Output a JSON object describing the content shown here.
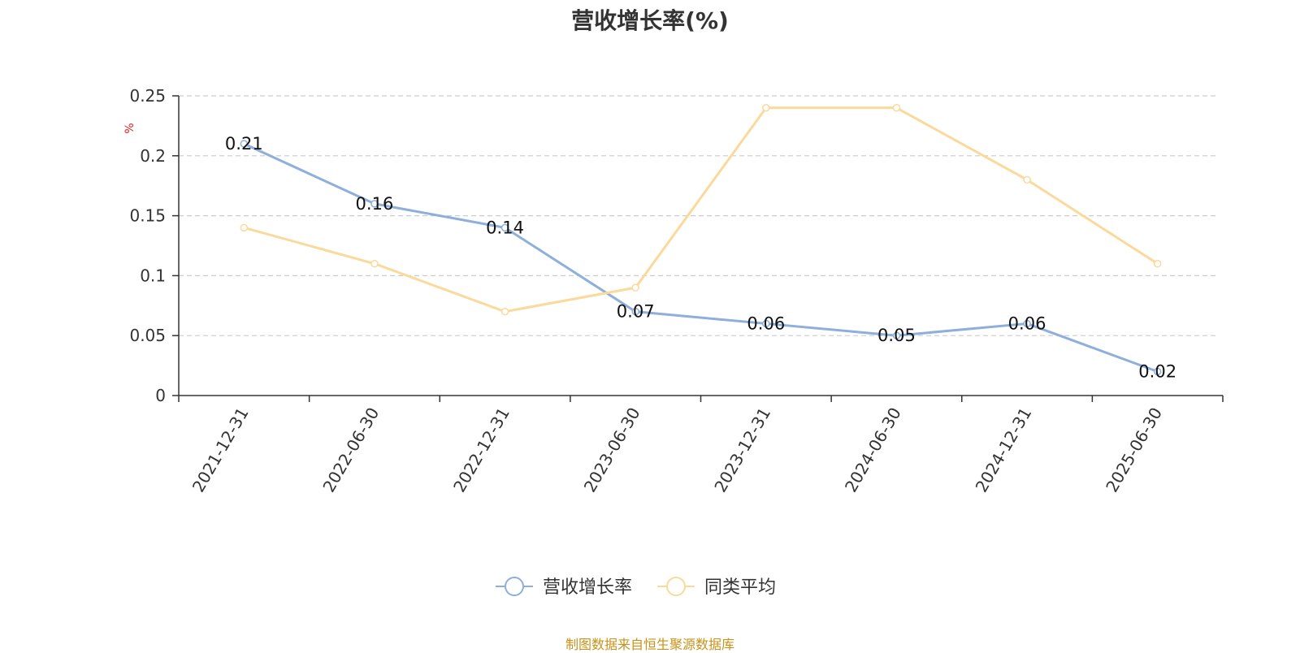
{
  "chart_data": {
    "type": "line",
    "title": "营收增长率(%)",
    "ylabel": "%",
    "xlabel": "",
    "categories": [
      "2021-12-31",
      "2022-06-30",
      "2022-12-31",
      "2023-06-30",
      "2023-12-31",
      "2024-06-30",
      "2024-12-31",
      "2025-06-30"
    ],
    "ylim": [
      0,
      0.25
    ],
    "yticks": [
      "0",
      "0.05",
      "0.1",
      "0.15",
      "0.2",
      "0.25"
    ],
    "grid": true,
    "legend_position": "bottom-center",
    "series": [
      {
        "name": "营收增长率",
        "color": "#8eaedb",
        "values": [
          0.21,
          0.16,
          0.14,
          0.07,
          0.06,
          0.05,
          0.06,
          0.02
        ],
        "labels": [
          "0.21",
          "0.16",
          "0.14",
          "0.07",
          "0.06",
          "0.05",
          "0.06",
          "0.02"
        ]
      },
      {
        "name": "同类平均",
        "color": "#fbd99b",
        "values": [
          0.14,
          0.11,
          0.07,
          0.09,
          0.24,
          0.24,
          0.18,
          0.11
        ]
      }
    ]
  },
  "footer": {
    "source": "制图数据来自恒生聚源数据库"
  }
}
